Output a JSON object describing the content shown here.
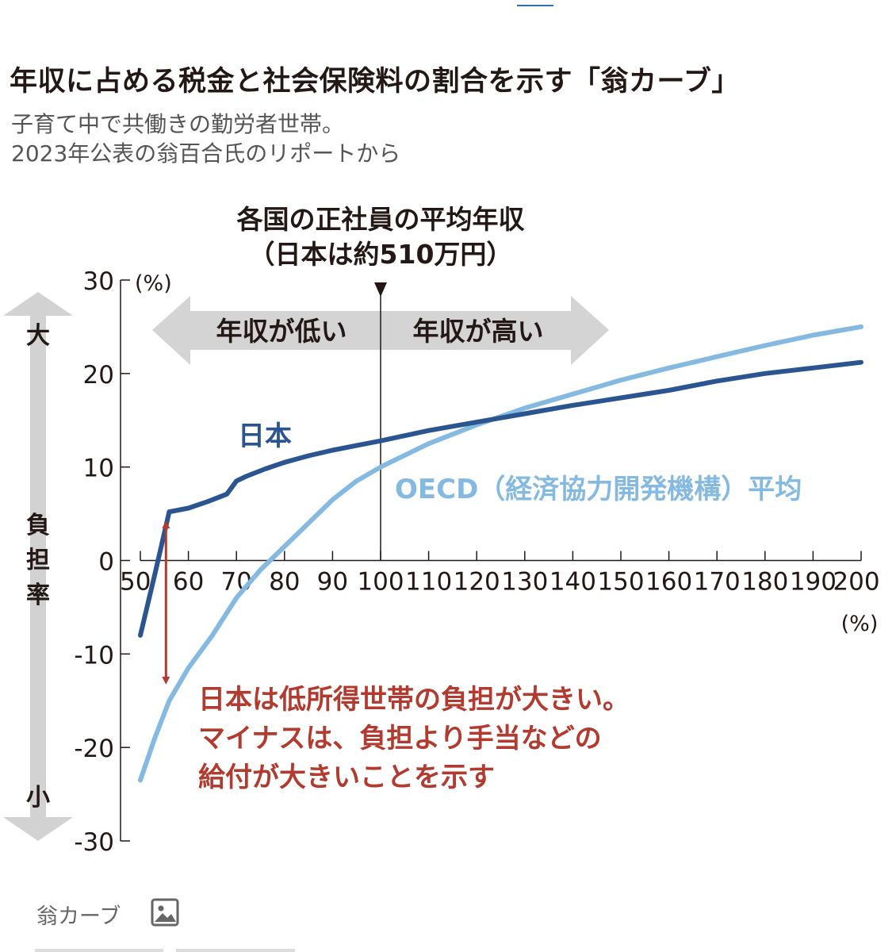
{
  "header": {
    "title": "年収に占める税金と社会保険料の割合を示す「翁カーブ」",
    "subtitle_lines": [
      "子育て中で共働きの勤労者世帯。",
      "2023年公表の翁百合氏のリポートから"
    ]
  },
  "chart_data": {
    "type": "line",
    "title": "年収に占める税金と社会保険料の割合を示す「翁カーブ」",
    "xlabel": "(%)",
    "ylabel": "負担率",
    "y_unit": "(%)",
    "xlim": [
      50,
      200
    ],
    "ylim": [
      -30,
      30
    ],
    "x_ticks": [
      50,
      60,
      70,
      80,
      90,
      100,
      110,
      120,
      130,
      140,
      150,
      160,
      170,
      180,
      190,
      200
    ],
    "y_ticks": [
      30,
      20,
      10,
      0,
      -10,
      -20,
      -30
    ],
    "y_scale_big": "大",
    "y_scale_small": "小",
    "reference_line": {
      "x": 100,
      "label_line1": "各国の正社員の平均年収",
      "label_line2": "（日本は約510万円）"
    },
    "range_arrow": {
      "left_label": "年収が低い",
      "right_label": "年収が高い"
    },
    "series": [
      {
        "name": "日本",
        "color": "#2b5590",
        "x": [
          50,
          53,
          56,
          60,
          64,
          68,
          70,
          72,
          76,
          80,
          85,
          90,
          95,
          100,
          110,
          120,
          130,
          140,
          150,
          160,
          170,
          180,
          190,
          200
        ],
        "y": [
          -8,
          -1.5,
          5.2,
          5.6,
          6.3,
          7.1,
          8.5,
          9.0,
          9.8,
          10.5,
          11.2,
          11.8,
          12.3,
          12.8,
          13.9,
          14.8,
          15.7,
          16.6,
          17.4,
          18.2,
          19.2,
          20.0,
          20.6,
          21.2
        ]
      },
      {
        "name": "OECD（経済協力開発機構）平均",
        "color": "#84b9e2",
        "x": [
          50,
          53,
          56,
          60,
          65,
          70,
          75,
          80,
          85,
          90,
          95,
          100,
          110,
          120,
          130,
          140,
          150,
          160,
          170,
          180,
          190,
          200
        ],
        "y": [
          -23.5,
          -19,
          -15,
          -11.5,
          -8,
          -4,
          -1,
          1.5,
          4,
          6.5,
          8.5,
          10,
          12.5,
          14.5,
          16.3,
          17.8,
          19.3,
          20.6,
          21.8,
          23.0,
          24.1,
          25.0
        ]
      }
    ],
    "annotation": {
      "lines": [
        "日本は低所得世帯の負担が大きい。",
        "マイナスは、負担より手当などの",
        "給付が大きいことを示す"
      ],
      "arrow_x": 55,
      "arrow_from_y": -12,
      "arrow_to_y": 3,
      "color": "#b23a2e"
    }
  },
  "caption": {
    "label": "翁カーブ",
    "icon": "image-icon"
  }
}
